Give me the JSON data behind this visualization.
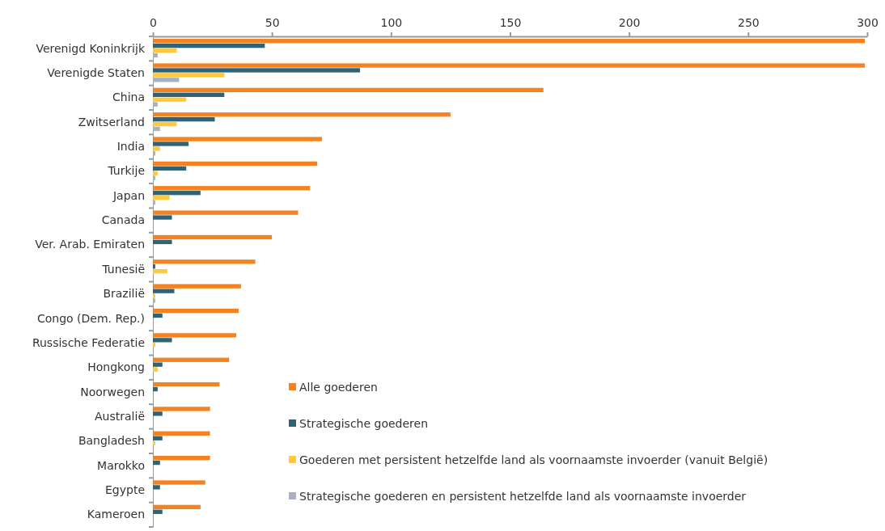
{
  "chart_data": {
    "type": "bar",
    "orientation": "horizontal",
    "categories": [
      "Verenigd Koninkrijk",
      "Verenigde Staten",
      "China",
      "Zwitserland",
      "India",
      "Turkije",
      "Japan",
      "Canada",
      "Ver. Arab. Emiraten",
      "Tunesië",
      "Brazilië",
      "Congo (Dem. Rep.)",
      "Russische Federatie",
      "Hongkong",
      "Noorwegen",
      "Australië",
      "Bangladesh",
      "Marokko",
      "Egypte",
      "Kameroen"
    ],
    "series": [
      {
        "name": "Alle goederen",
        "color": "#f58220",
        "values": [
          299,
          299,
          164,
          125,
          71,
          69,
          66,
          61,
          50,
          43,
          37,
          36,
          35,
          32,
          28,
          24,
          24,
          24,
          22,
          20
        ]
      },
      {
        "name": "Strategische goederen",
        "color": "#2e6378",
        "values": [
          47,
          87,
          30,
          26,
          15,
          14,
          20,
          8,
          8,
          1,
          9,
          4,
          8,
          4,
          2,
          4,
          4,
          3,
          3,
          4
        ]
      },
      {
        "name": "Goederen met persistent hetzelfde land als voornaamste invoerder (vanuit België)",
        "color": "#ffc83d",
        "values": [
          10,
          30,
          14,
          10,
          3,
          2,
          7,
          null,
          null,
          6,
          1,
          null,
          1,
          2,
          null,
          null,
          1,
          null,
          null,
          null
        ]
      },
      {
        "name": "Strategische goederen en persistent hetzelfde land als voornaamste invoerder",
        "color": "#a6b1c1",
        "values": [
          2,
          11,
          2,
          3,
          1,
          1,
          1,
          null,
          null,
          null,
          1,
          null,
          null,
          null,
          null,
          null,
          null,
          null,
          null,
          null
        ]
      }
    ],
    "xlim": [
      0,
      300
    ],
    "xticks": [
      0,
      50,
      100,
      150,
      200,
      250,
      300
    ],
    "grid": false,
    "legend": "bottom right"
  }
}
